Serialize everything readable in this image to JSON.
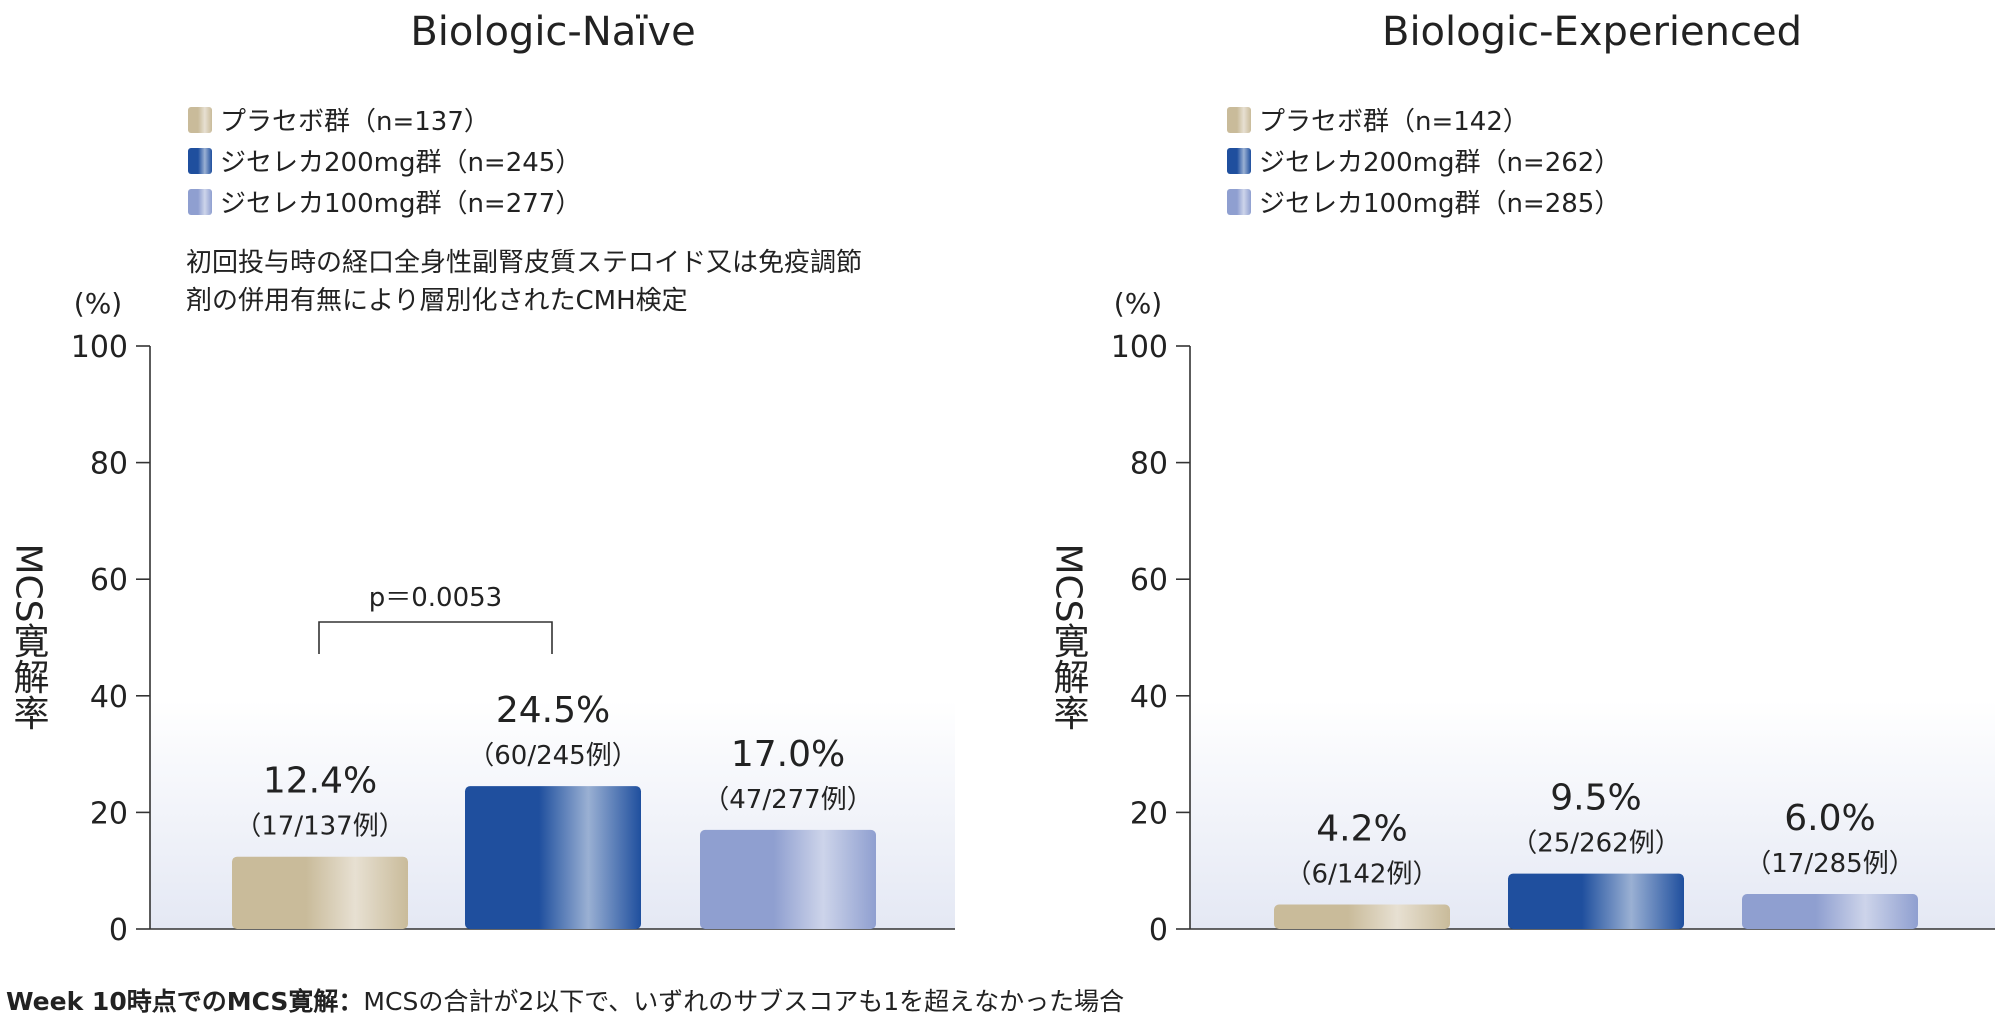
{
  "chart_data": [
    {
      "type": "bar",
      "title": "Biologic-Naïve",
      "ylabel": "MCS寛解率",
      "y_unit": "(%)",
      "ylim": [
        0,
        100
      ],
      "yticks": [
        0,
        20,
        40,
        60,
        80,
        100
      ],
      "grid": false,
      "legend_position": "top-left",
      "legend": [
        "プラセボ群（n=137）",
        "ジセレカ200mg群（n=245）",
        "ジセレカ100mg群（n=277）"
      ],
      "note": "初回投与時の経口全身性副腎皮質ステロイド又は免疫調節\n剤の併用有無により層別化されたCMH検定",
      "pvalue": "p＝0.0053",
      "bracket_between": [
        0,
        1
      ],
      "values": [
        12.4,
        24.5,
        17.0
      ],
      "value_labels": [
        "12.4%",
        "24.5%",
        "17.0%"
      ],
      "count_labels": [
        "（17/137例）",
        "（60/245例）",
        "（47/277例）"
      ],
      "colors": [
        "#c9bb9a",
        "#1f4f9e",
        "#8f9fd0"
      ]
    },
    {
      "type": "bar",
      "title": "Biologic-Experienced",
      "ylabel": "MCS寛解率",
      "y_unit": "(%)",
      "ylim": [
        0,
        100
      ],
      "yticks": [
        0,
        20,
        40,
        60,
        80,
        100
      ],
      "grid": false,
      "legend_position": "top-left",
      "legend": [
        "プラセボ群（n=142）",
        "ジセレカ200mg群（n=262）",
        "ジセレカ100mg群（n=285）"
      ],
      "note": "",
      "pvalue": "",
      "values": [
        4.2,
        9.5,
        6.0
      ],
      "value_labels": [
        "4.2%",
        "9.5%",
        "6.0%"
      ],
      "count_labels": [
        "（6/142例）",
        "（25/262例）",
        "（17/285例）"
      ],
      "colors": [
        "#c9bb9a",
        "#1f4f9e",
        "#8f9fd0"
      ]
    }
  ],
  "footnote": {
    "bold": "Week 10時点でのMCS寛解：",
    "text": "MCSの合計が2以下で、いずれのサブスコアも1を超えなかった場合"
  }
}
